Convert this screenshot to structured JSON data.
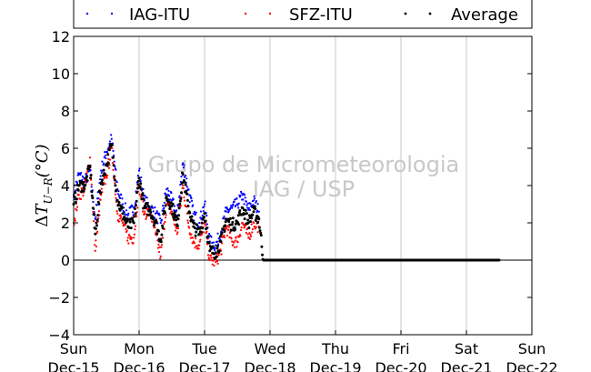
{
  "chart_data": {
    "type": "scatter",
    "title": "",
    "ylabel": "ΔT_{U−R}(°C)",
    "ylabel_parts": {
      "delta": "Δ",
      "var": "T",
      "sub": "U−R",
      "unit": "(°C)"
    },
    "xlabel": "",
    "ylim": [
      -4,
      12
    ],
    "yticks": [
      -4,
      -2,
      0,
      2,
      4,
      6,
      8,
      10,
      12
    ],
    "ytick_labels": [
      "−4",
      "−2",
      "0",
      "2",
      "4",
      "6",
      "8",
      "10",
      "12"
    ],
    "xlim_days": [
      0,
      7
    ],
    "x_start": "Sun Dec-15",
    "xticks": [
      {
        "day": 0,
        "weekday": "Sun",
        "date": "Dec-15"
      },
      {
        "day": 1,
        "weekday": "Mon",
        "date": "Dec-16"
      },
      {
        "day": 2,
        "weekday": "Tue",
        "date": "Dec-17"
      },
      {
        "day": 3,
        "weekday": "Wed",
        "date": "Dec-18"
      },
      {
        "day": 4,
        "weekday": "Thu",
        "date": "Dec-19"
      },
      {
        "day": 5,
        "weekday": "Fri",
        "date": "Dec-20"
      },
      {
        "day": 6,
        "weekday": "Sat",
        "date": "Dec-21"
      },
      {
        "day": 7,
        "weekday": "Sun",
        "date": "Dec-22"
      }
    ],
    "grid": "vertical",
    "zero_line": true,
    "legend_position": "top",
    "series": [
      {
        "name": "IAG-ITU",
        "color": "#0000ff",
        "x": [
          0.0,
          0.08,
          0.17,
          0.25,
          0.33,
          0.42,
          0.5,
          0.58,
          0.67,
          0.75,
          0.83,
          0.92,
          1.0,
          1.08,
          1.17,
          1.25,
          1.33,
          1.42,
          1.5,
          1.58,
          1.67,
          1.75,
          1.83,
          1.92,
          2.0,
          2.08,
          2.17,
          2.25,
          2.33,
          2.42,
          2.5,
          2.58,
          2.67,
          2.75,
          2.83
        ],
        "y": [
          3.5,
          4.6,
          4.2,
          4.8,
          2.2,
          4.8,
          5.8,
          6.5,
          3.8,
          3.0,
          2.4,
          2.8,
          4.8,
          3.2,
          2.8,
          2.5,
          2.0,
          3.8,
          3.2,
          2.4,
          5.2,
          3.8,
          2.5,
          2.0,
          3.0,
          1.0,
          0.8,
          1.5,
          2.6,
          2.8,
          3.0,
          3.5,
          2.7,
          3.2,
          2.6
        ]
      },
      {
        "name": "SFZ-ITU",
        "color": "#ff0000",
        "x": [
          0.0,
          0.08,
          0.17,
          0.25,
          0.33,
          0.42,
          0.5,
          0.58,
          0.67,
          0.75,
          0.83,
          0.92,
          1.0,
          1.08,
          1.17,
          1.25,
          1.33,
          1.42,
          1.5,
          1.58,
          1.67,
          1.75,
          1.83,
          1.92,
          2.0,
          2.08,
          2.17,
          2.25,
          2.33,
          2.42,
          2.5,
          2.58,
          2.67,
          2.75,
          2.83
        ],
        "y": [
          2.0,
          3.5,
          3.8,
          5.5,
          0.5,
          3.5,
          4.5,
          6.0,
          2.5,
          2.0,
          1.2,
          1.2,
          4.0,
          2.5,
          2.6,
          1.4,
          0.2,
          3.0,
          2.6,
          1.4,
          4.0,
          2.0,
          1.0,
          0.8,
          2.0,
          0.0,
          -0.1,
          0.5,
          1.8,
          1.0,
          1.0,
          2.0,
          1.2,
          2.0,
          1.8
        ]
      },
      {
        "name": "Average",
        "color": "#000000",
        "x": [
          0.0,
          0.08,
          0.17,
          0.25,
          0.33,
          0.42,
          0.5,
          0.58,
          0.67,
          0.75,
          0.83,
          0.92,
          1.0,
          1.08,
          1.17,
          1.25,
          1.33,
          1.42,
          1.5,
          1.58,
          1.67,
          1.75,
          1.83,
          1.92,
          2.0,
          2.08,
          2.17,
          2.25,
          2.33,
          2.42,
          2.5,
          2.58,
          2.67,
          2.75,
          2.83,
          2.9,
          3.5,
          4.0,
          4.5,
          5.0,
          5.5,
          6.0,
          6.5
        ],
        "y": [
          3.0,
          4.0,
          4.0,
          5.0,
          1.4,
          4.1,
          5.1,
          6.2,
          3.2,
          2.5,
          1.8,
          2.0,
          4.4,
          2.8,
          2.7,
          2.0,
          1.1,
          3.4,
          2.9,
          1.9,
          4.6,
          2.9,
          1.8,
          1.4,
          2.5,
          0.5,
          0.4,
          1.0,
          2.2,
          1.9,
          2.0,
          2.8,
          2.0,
          2.6,
          2.2,
          0.0,
          0.0,
          0.0,
          0.0,
          0.0,
          0.0,
          0.0,
          0.0
        ]
      }
    ]
  },
  "watermark": {
    "line1": "Grupo de Micrometeorologia",
    "line2": "IAG / USP"
  }
}
